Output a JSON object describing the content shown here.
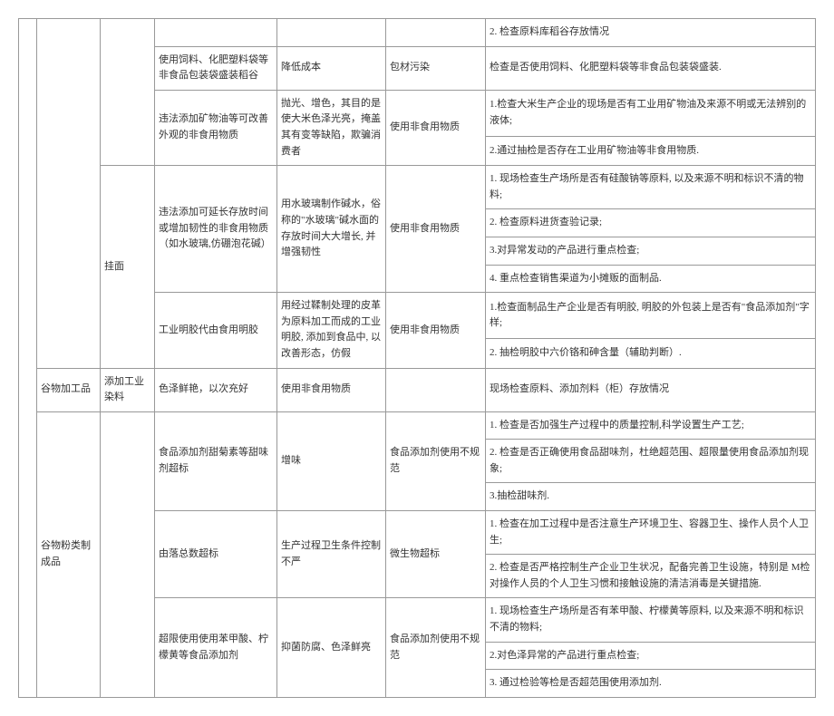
{
  "rows": [
    {
      "c7": "2. 检查原料库稻谷存放情况"
    },
    {
      "c4": "使用饲料、化肥塑料袋等非食品包装袋盛装稻谷",
      "c5": "降低成本",
      "c6": "包材污染",
      "c7": "检查是否使用饲料、化肥塑料袋等非食品包装袋盛装."
    },
    {
      "c4": "违法添加矿物油等可改善外观的非食用物质",
      "c5": "抛光、增色，其目的是使大米色泽光亮，掩盖其有变等缺陷，欺骗消费者",
      "c6": "使用非食用物质",
      "c7a": "1.检查大米生产企业的现场是否有工业用矿物油及来源不明或无法辨别的液体;",
      "c7b": "2.通过抽检是否存在工业用矿物油等非食用物质."
    },
    {
      "c3": "挂面",
      "c4": "违法添加可延长存放时间或增加韧性的非食用物质（如水玻璃,仿硼泡花碱）",
      "c5": "用水玻璃制作碱水，俗称的\"水玻璃\"碱水面的存放时间大大增长, 并增强韧性",
      "c6": "使用非食用物质",
      "c7a": "1. 现场检查生产场所是否有硅酸钠等原料, 以及来源不明和标识不清的物料;",
      "c7b": "2. 检查原料进货查验记录;",
      "c7c": "3.对异常发动的产品进行重点检查;",
      "c7d": "4. 重点检查销售渠道为小摊贩的面制品."
    },
    {
      "c4": "工业明胶代由食用明胶",
      "c5": "用经过鞣制处理的皮革为原料加工而成的工业明胶, 添加到食品中, 以改善形态，仿假",
      "c6": "使用非食用物质",
      "c7a": "1.检查面制品生产企业是否有明胶, 明胶的外包装上是否有\"食品添加剂\"字样;",
      "c7b": "2. 抽检明胶中六价铬和砷含量（辅助判断）."
    },
    {
      "c2": "谷物加工品",
      "c3": "添加工业染料",
      "c4": "色泽鲜艳，以次充好",
      "c5": "使用非食用物质",
      "c7": "现场检查原料、添加剂料（柜）存放情况"
    },
    {
      "c2": "谷物粉类制成品",
      "c4": "食品添加剂甜菊素等甜味剂超标",
      "c5": "增味",
      "c6": "食品添加剂使用不规范",
      "c7a": "1. 检查是否加强生产过程中的质量控制,科学设置生产工艺;",
      "c7b": "2. 检查是否正确使用食品甜味剂，杜绝超范围、超限量使用食品添加剂现象;",
      "c7c": "3.抽检甜味剂."
    },
    {
      "c4": "由落总数超标",
      "c5": "生产过程卫生条件控制不严",
      "c6": "微生物超标",
      "c7a": "1. 检查在加工过程中是否注意生产环境卫生、容器卫生、操作人员个人卫生;",
      "c7b": "2. 检查是否严格控制生产企业卫生状况，配备完善卫生设施，特别是 M检对操作人员的个人卫生习惯和接触设施的清洁消毒是关键措施."
    },
    {
      "c4": "超限使用使用苯甲酸、柠檬黄等食品添加剂",
      "c5": "抑菌防腐、色泽鲜亮",
      "c6": "食品添加剂使用不规范",
      "c7a": "1. 现场检查生产场所是否有苯甲酸、柠檬黄等原料, 以及来源不明和标识不清的物料;",
      "c7b": "2.对色泽异常的产品进行重点检查;",
      "c7c": "3. 通过检验等检是否超范围使用添加剂."
    }
  ]
}
